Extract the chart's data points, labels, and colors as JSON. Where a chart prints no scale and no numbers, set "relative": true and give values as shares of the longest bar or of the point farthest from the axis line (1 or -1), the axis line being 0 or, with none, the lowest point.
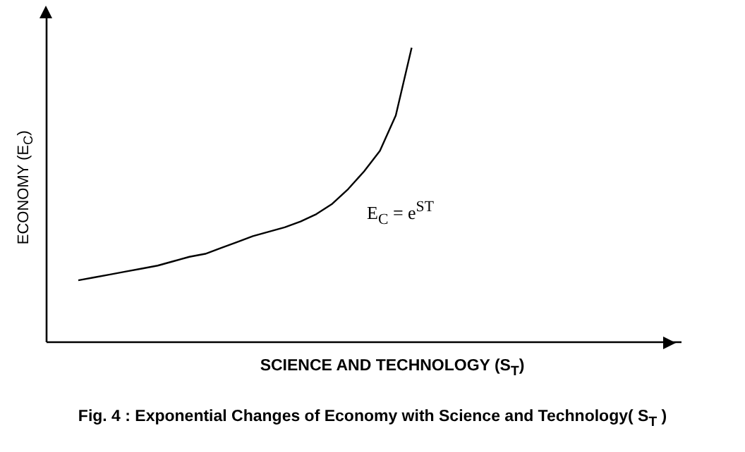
{
  "chart_data": {
    "type": "line",
    "relative": true,
    "title": "Fig. 4 : Exponential Changes of Economy with Science and Technology( S$_{T}$ )",
    "xlabel": "SCIENCE AND TECHNOLOGY (S$_{T}$)",
    "ylabel": "ECONOMY (E$_{C}$)",
    "annotations": [
      "E$_{C}$ = e$^{ST}$"
    ],
    "categories": [
      null,
      null,
      null,
      null,
      null,
      null,
      null,
      null,
      null,
      null,
      null,
      null,
      null,
      null,
      null,
      null,
      null,
      null,
      null,
      null,
      null,
      null,
      null,
      null,
      null,
      null,
      null,
      null,
      null,
      null,
      null,
      null,
      null,
      null,
      null,
      null,
      null,
      null,
      null,
      null
    ],
    "series": [
      {
        "color": "#000000",
        "values": [
          null,
          0.21,
          0.22,
          0.23,
          0.24,
          0.25,
          0.26,
          0.275,
          0.29,
          0.3,
          0.32,
          0.34,
          0.36,
          0.375,
          0.39,
          0.41,
          0.435,
          0.47,
          0.52,
          0.58,
          0.65,
          0.77,
          1,
          null,
          null,
          null,
          null,
          null,
          null,
          null,
          null,
          null,
          null,
          null,
          null,
          null,
          null,
          null,
          null,
          null
        ]
      }
    ],
    "grid": false,
    "legend": false,
    "marker": "none",
    "line_style": "solid"
  }
}
